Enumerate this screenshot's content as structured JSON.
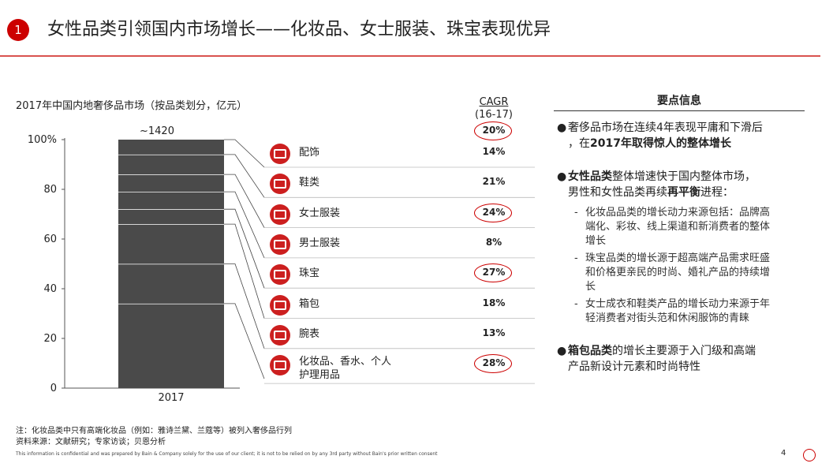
{
  "slide": {
    "number": "1",
    "title": "女性品类引领国内市场增长——化妆品、女士服装、珠宝表现优异",
    "page": "4"
  },
  "chart_data": {
    "type": "bar",
    "title": "2017年中国内地奢侈品市场（按品类划分，亿元）",
    "categories": [
      "2017"
    ],
    "total_label": "~1420",
    "ylim": [
      0,
      100
    ],
    "yticks": [
      "0",
      "20",
      "40",
      "60",
      "80",
      "100%"
    ],
    "stacked": true,
    "series": [
      {
        "name": "化妆品、香水、个人护理用品",
        "value": 34,
        "cagr": "28%",
        "circled": true
      },
      {
        "name": "腕表",
        "value": 16,
        "cagr": "13%",
        "circled": false
      },
      {
        "name": "箱包",
        "value": 16,
        "cagr": "18%",
        "circled": false
      },
      {
        "name": "珠宝",
        "value": 6,
        "cagr": "27%",
        "circled": true
      },
      {
        "name": "男士服装",
        "value": 7,
        "cagr": "8%",
        "circled": false
      },
      {
        "name": "女士服装",
        "value": 7,
        "cagr": "24%",
        "circled": true
      },
      {
        "name": "鞋类",
        "value": 8,
        "cagr": "21%",
        "circled": false
      },
      {
        "name": "配饰",
        "value": 6,
        "cagr": "14%",
        "circled": false
      }
    ],
    "cagr_header": {
      "label": "CAGR",
      "period": "(16-17)",
      "total": "20%"
    }
  },
  "legend": {
    "items": [
      {
        "label": "配饰",
        "icon": "belt-icon"
      },
      {
        "label": "鞋类",
        "icon": "shoe-icon"
      },
      {
        "label": "女士服装",
        "icon": "dress-icon"
      },
      {
        "label": "男士服装",
        "icon": "jacket-icon"
      },
      {
        "label": "珠宝",
        "icon": "ring-icon"
      },
      {
        "label": "箱包",
        "icon": "handbag-icon"
      },
      {
        "label": "腕表",
        "icon": "watch-icon"
      },
      {
        "label": "化妆品、香水、个人",
        "label2": "护理用品",
        "icon": "perfume-icon"
      }
    ]
  },
  "panel": {
    "title": "要点信息",
    "b1_line1": "奢侈品市场在连续4年表现平庸和下滑后",
    "b1_line2_pre": "，在",
    "b1_line2_bold": "2017年取得惊人的整体增长",
    "b2_line1_bold": "女性品类",
    "b2_line1_rest": "整体增速快于国内整体市场，",
    "b2_line2_pre": "男性和女性品类再续",
    "b2_line2_bold": "再平衡",
    "b2_line2_post": "进程：",
    "s1_l1": "化妆品品类的增长动力来源包括：品牌高",
    "s1_l2": "端化、彩妆、线上渠道和新消费者的整体",
    "s1_l3": "增长",
    "s2_l1": "珠宝品类的增长源于超高端产品需求旺盛",
    "s2_l2": "和价格更亲民的时尚、婚礼产品的持续增",
    "s2_l3": "长",
    "s3_l1": "女士成衣和鞋类产品的增长动力来源于年",
    "s3_l2": "轻消费者对街头范和休闲服饰的青睐",
    "b3_line1_bold": "箱包品类",
    "b3_line1_rest": "的增长主要源于入门级和高端",
    "b3_line2": "产品新设计元素和时尚特性"
  },
  "notes": {
    "note1": "注：化妆品类中只有高端化妆品（例如：雅诗兰黛、兰蔻等）被列入奢侈品行列",
    "note2": "资料来源：文献研究；专家访谈；贝恩分析",
    "footer": "This information is confidential and was prepared by Bain & Company solely for the use of our client; it is not to be relied on by any 3rd party without Bain's prior written consent"
  },
  "colors": {
    "accent": "#cc0000",
    "bar": "#4a4a4a",
    "segment_line": "#ffffff"
  }
}
